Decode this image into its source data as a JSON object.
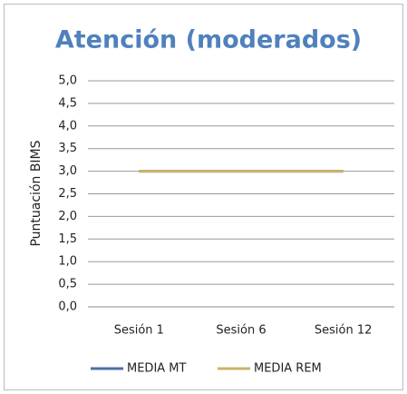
{
  "chart_data": {
    "type": "line",
    "title": "Atención (moderados)",
    "ylabel": "Puntuación BIMS",
    "categories": [
      "Sesión 1",
      "Sesión 6",
      "Sesión 12"
    ],
    "series": [
      {
        "name": "MEDIA MT",
        "color": "#4f6fa8",
        "values": [
          3.0,
          3.0,
          3.0
        ]
      },
      {
        "name": "MEDIA REM",
        "color": "#c9b46c",
        "values": [
          3.0,
          3.0,
          3.0
        ]
      }
    ],
    "ylim": [
      0,
      5
    ],
    "yticks": [
      {
        "value": 0,
        "label": "0,0"
      },
      {
        "value": 0.5,
        "label": "0,5"
      },
      {
        "value": 1,
        "label": "1,0"
      },
      {
        "value": 1.5,
        "label": "1,5"
      },
      {
        "value": 2,
        "label": "2,0"
      },
      {
        "value": 2.5,
        "label": "2,5"
      },
      {
        "value": 3,
        "label": "3,0"
      },
      {
        "value": 3.5,
        "label": "3,5"
      },
      {
        "value": 4,
        "label": "4,0"
      },
      {
        "value": 4.5,
        "label": "4,5"
      },
      {
        "value": 5,
        "label": "5,0"
      }
    ],
    "grid": true,
    "legend": "bottom"
  }
}
